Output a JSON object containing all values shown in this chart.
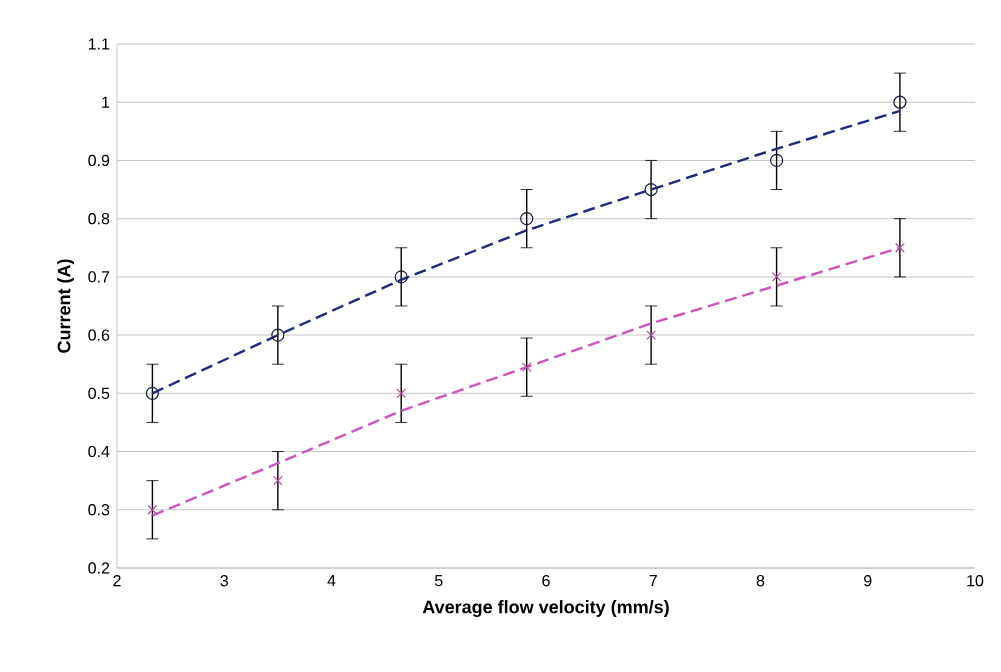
{
  "chart_data": {
    "type": "scatter",
    "xlabel": "Average flow velocity (mm/s)",
    "ylabel": "Current (A)",
    "xlim": [
      2,
      10
    ],
    "ylim": [
      0.2,
      1.1
    ],
    "xticks": [
      2,
      3,
      4,
      5,
      6,
      7,
      8,
      9,
      10
    ],
    "yticks": [
      0.2,
      0.3,
      0.4,
      0.5,
      0.6,
      0.7,
      0.8,
      0.9,
      1,
      1.1
    ],
    "grid": "y",
    "series": [
      {
        "marker": "circle",
        "color": "#1a1a3a",
        "x": [
          2.33,
          3.5,
          4.65,
          5.82,
          6.98,
          8.15,
          9.3
        ],
        "values": [
          0.5,
          0.6,
          0.7,
          0.8,
          0.85,
          0.9,
          1.0
        ],
        "errors": [
          0.05,
          0.05,
          0.05,
          0.05,
          0.05,
          0.05,
          0.05
        ]
      },
      {
        "marker": "cross",
        "color": "#b04aa0",
        "x": [
          2.33,
          3.5,
          4.65,
          5.82,
          6.98,
          8.15,
          9.3
        ],
        "values": [
          0.3,
          0.35,
          0.5,
          0.545,
          0.6,
          0.7,
          0.75
        ],
        "errors": [
          0.05,
          0.05,
          0.05,
          0.05,
          0.05,
          0.05,
          0.05
        ]
      },
      {
        "type": "line",
        "marker": "none",
        "line_style": "dashed",
        "color": "#1f2a7a",
        "x": [
          2.33,
          3.5,
          4.65,
          5.82,
          6.98,
          8.15,
          9.3
        ],
        "values": [
          0.5,
          0.6,
          0.695,
          0.78,
          0.85,
          0.92,
          0.985
        ]
      },
      {
        "type": "line",
        "marker": "none",
        "line_style": "dashed",
        "color": "#cc55bb",
        "x": [
          2.33,
          3.5,
          4.65,
          5.82,
          6.98,
          8.15,
          9.3
        ],
        "values": [
          0.29,
          0.38,
          0.47,
          0.545,
          0.62,
          0.685,
          0.75
        ]
      }
    ]
  }
}
